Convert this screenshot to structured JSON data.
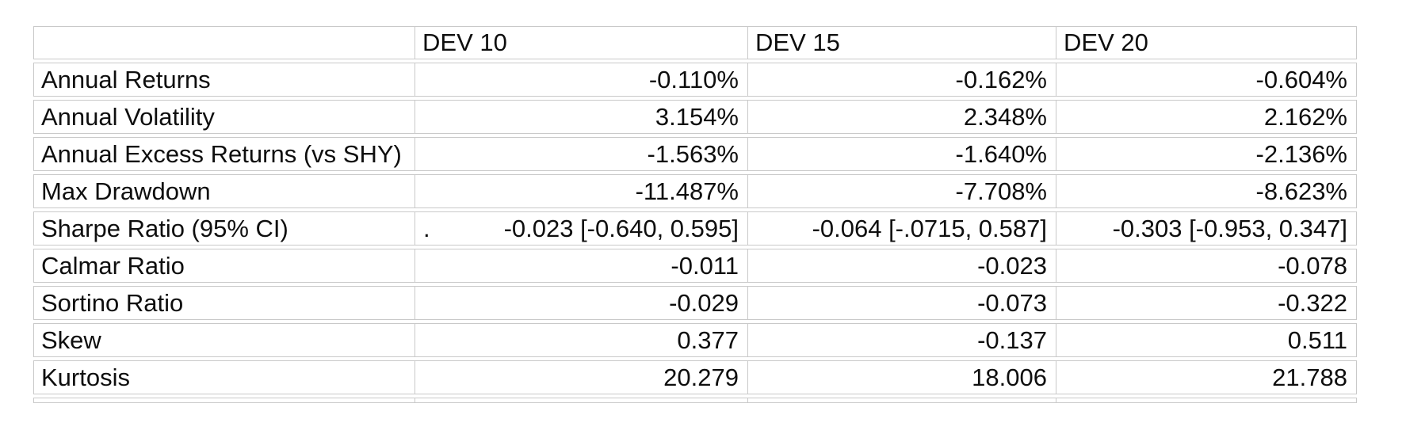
{
  "colors": {
    "background": "#ffffff",
    "grid_border": "#c9c9c9",
    "text": "#0e0e0e"
  },
  "chart_data": {
    "type": "table",
    "title": "",
    "columns": [
      "",
      "DEV 10",
      "DEV 15",
      "DEV 20"
    ],
    "rows": [
      {
        "label": "Annual Returns",
        "values": [
          "-0.110%",
          "-0.162%",
          "-0.604%"
        ]
      },
      {
        "label": "Annual Volatility",
        "values": [
          "3.154%",
          "2.348%",
          "2.162%"
        ]
      },
      {
        "label": "Annual Excess Returns (vs SHY)",
        "values": [
          "-1.563%",
          "-1.640%",
          "-2.136%"
        ]
      },
      {
        "label": "Max Drawdown",
        "values": [
          "-11.487%",
          "-7.708%",
          "-8.623%"
        ]
      },
      {
        "label": "Sharpe Ratio (95% CI)",
        "prefix": ".",
        "values": [
          "-0.023 [-0.640, 0.595]",
          "-0.064 [-.0715, 0.587]",
          "-0.303 [-0.953, 0.347]"
        ]
      },
      {
        "label": "Calmar Ratio",
        "values": [
          "-0.011",
          "-0.023",
          "-0.078"
        ]
      },
      {
        "label": "Sortino Ratio",
        "values": [
          "-0.029",
          "-0.073",
          "-0.322"
        ]
      },
      {
        "label": "Skew",
        "values": [
          "0.377",
          "-0.137",
          "0.511"
        ]
      },
      {
        "label": "Kurtosis",
        "values": [
          "20.279",
          "18.006",
          "21.788"
        ]
      }
    ]
  }
}
